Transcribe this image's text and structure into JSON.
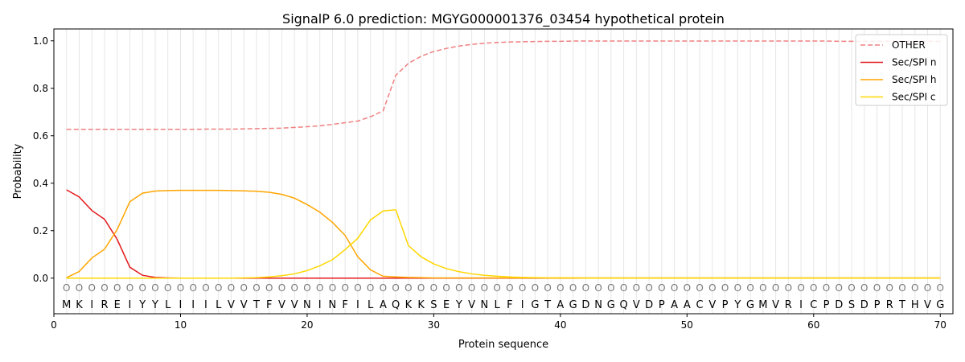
{
  "chart_data": {
    "type": "line",
    "title": "SignalP 6.0 prediction: MGYG000001376_03454 hypothetical protein",
    "xlabel": "Protein sequence",
    "ylabel": "Probability",
    "xlim": [
      0,
      71
    ],
    "ylim": [
      -0.15,
      1.05
    ],
    "xticks": [
      0,
      10,
      20,
      30,
      40,
      50,
      60,
      70
    ],
    "yticks": [
      0.0,
      0.2,
      0.4,
      0.6,
      0.8,
      1.0
    ],
    "ytick_labels": [
      "0.0",
      "0.2",
      "0.4",
      "0.6",
      "0.8",
      "1.0"
    ],
    "grid": "vertical lines at each residue",
    "legend_position": "top-right",
    "sequence": [
      "M",
      "K",
      "I",
      "R",
      "E",
      "I",
      "Y",
      "Y",
      "L",
      "I",
      "I",
      "I",
      "L",
      "V",
      "V",
      "T",
      "F",
      "V",
      "V",
      "N",
      "I",
      "N",
      "F",
      "I",
      "L",
      "A",
      "Q",
      "K",
      "K",
      "S",
      "E",
      "Y",
      "V",
      "N",
      "L",
      "F",
      "I",
      "G",
      "T",
      "A",
      "G",
      "D",
      "N",
      "G",
      "Q",
      "V",
      "D",
      "P",
      "A",
      "A",
      "C",
      "V",
      "P",
      "Y",
      "G",
      "M",
      "V",
      "R",
      "I",
      "C",
      "P",
      "D",
      "S",
      "D",
      "P",
      "R",
      "T",
      "H",
      "V",
      "G"
    ],
    "region_label": "O",
    "series": [
      {
        "name": "OTHER",
        "color": "#f08080",
        "style": "dashed",
        "values": [
          0.627,
          0.627,
          0.627,
          0.627,
          0.627,
          0.627,
          0.627,
          0.627,
          0.627,
          0.627,
          0.627,
          0.628,
          0.628,
          0.628,
          0.629,
          0.63,
          0.631,
          0.632,
          0.635,
          0.638,
          0.642,
          0.648,
          0.655,
          0.662,
          0.68,
          0.705,
          0.855,
          0.905,
          0.935,
          0.955,
          0.968,
          0.978,
          0.985,
          0.99,
          0.993,
          0.995,
          0.996,
          0.997,
          0.998,
          0.998,
          0.999,
          0.999,
          0.999,
          0.999,
          0.999,
          0.999,
          0.999,
          0.999,
          0.999,
          0.999,
          0.999,
          0.999,
          0.999,
          0.999,
          0.999,
          0.999,
          0.999,
          0.999,
          0.999,
          0.999,
          0.999,
          0.998,
          0.998,
          0.998,
          0.998,
          0.998,
          0.998,
          0.998,
          0.998,
          0.998
        ]
      },
      {
        "name": "Sec/SPI n",
        "color": "#e41a1c",
        "style": "solid",
        "values": [
          0.372,
          0.342,
          0.285,
          0.248,
          0.163,
          0.046,
          0.012,
          0.003,
          0.001,
          0,
          0,
          0,
          0,
          0,
          0,
          0,
          0,
          0,
          0,
          0,
          0,
          0,
          0,
          0,
          0,
          0,
          0,
          0,
          0,
          0,
          0,
          0,
          0,
          0,
          0,
          0,
          0,
          0,
          0,
          0,
          0,
          0,
          0,
          0,
          0,
          0,
          0,
          0,
          0,
          0,
          0,
          0,
          0,
          0,
          0,
          0,
          0,
          0,
          0,
          0,
          0,
          0,
          0,
          0,
          0,
          0,
          0,
          0,
          0,
          0
        ]
      },
      {
        "name": "Sec/SPI h",
        "color": "#ffa500",
        "style": "solid",
        "values": [
          0.002,
          0.028,
          0.085,
          0.122,
          0.205,
          0.322,
          0.358,
          0.367,
          0.369,
          0.37,
          0.37,
          0.37,
          0.37,
          0.369,
          0.368,
          0.366,
          0.362,
          0.353,
          0.337,
          0.31,
          0.278,
          0.235,
          0.18,
          0.09,
          0.035,
          0.008,
          0.005,
          0.003,
          0.002,
          0.001,
          0.001,
          0.001,
          0.001,
          0.001,
          0.001,
          0.001,
          0.001,
          0.001,
          0.001,
          0.001,
          0.001,
          0.001,
          0.001,
          0.001,
          0.001,
          0.001,
          0.001,
          0.001,
          0.001,
          0.001,
          0.001,
          0.001,
          0.001,
          0.001,
          0.001,
          0.001,
          0.001,
          0.001,
          0.001,
          0.001,
          0.001,
          0.001,
          0.001,
          0.001,
          0.001,
          0.001,
          0.001,
          0.001,
          0.001,
          0.001
        ]
      },
      {
        "name": "Sec/SPI c",
        "color": "#ffd700",
        "style": "solid",
        "values": [
          0,
          0,
          0,
          0,
          0,
          0,
          0,
          0,
          0,
          0,
          0,
          0,
          0,
          0,
          0.001,
          0.002,
          0.005,
          0.01,
          0.018,
          0.032,
          0.052,
          0.078,
          0.12,
          0.168,
          0.245,
          0.283,
          0.288,
          0.137,
          0.09,
          0.06,
          0.04,
          0.027,
          0.018,
          0.012,
          0.008,
          0.005,
          0.003,
          0.002,
          0.001,
          0.001,
          0.001,
          0,
          0,
          0,
          0,
          0,
          0,
          0,
          0,
          0,
          0,
          0,
          0,
          0,
          0,
          0,
          0,
          0,
          0,
          0,
          0,
          0,
          0,
          0,
          0,
          0,
          0,
          0,
          0,
          0
        ]
      }
    ]
  }
}
